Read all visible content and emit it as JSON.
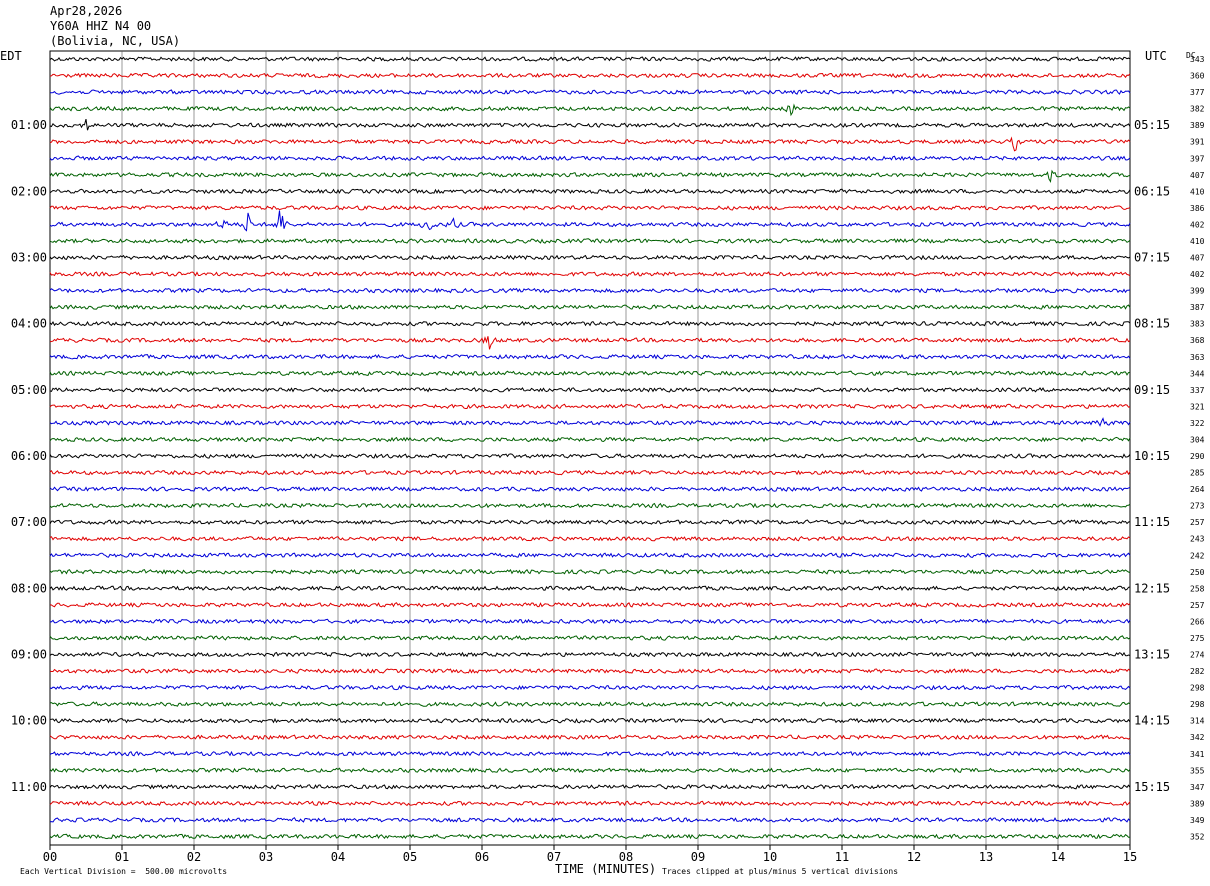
{
  "header": {
    "date": "Apr28,2026",
    "station": "Y60A HHZ N4 00",
    "location": "(Bolivia, NC, USA)"
  },
  "labels": {
    "left_tz": "EDT",
    "right_tz": "UTC",
    "dc": "DC"
  },
  "footer": {
    "scale_note": "Each Vertical Division =  500.00 microvolts",
    "clip_note": "Traces clipped at plus/minus 5 vertical divisions"
  },
  "chart_data": {
    "type": "line",
    "title": "",
    "xlabel": "TIME (MINUTES)",
    "xlim": [
      0,
      15
    ],
    "x_ticks": [
      "00",
      "01",
      "02",
      "03",
      "04",
      "05",
      "06",
      "07",
      "08",
      "09",
      "10",
      "11",
      "12",
      "13",
      "14",
      "15"
    ],
    "grid": "vertical lines each minute",
    "row_count": 48,
    "row_minutes": 15,
    "left_hour_labels": [
      "01:00",
      "02:00",
      "03:00",
      "04:00",
      "05:00",
      "06:00",
      "07:00",
      "08:00",
      "09:00",
      "10:00",
      "11:00"
    ],
    "right_hour_labels": [
      "05:15",
      "06:15",
      "07:15",
      "08:15",
      "09:15",
      "10:15",
      "11:15",
      "12:15",
      "13:15",
      "14:15",
      "15:15"
    ],
    "hour_label_start_row": 4,
    "hour_label_every_rows": 4,
    "trace_colors": [
      "#000000",
      "#e00000",
      "#0000d8",
      "#006000"
    ],
    "dc_offsets": [
      343,
      360,
      377,
      382,
      389,
      391,
      397,
      407,
      410,
      386,
      402,
      410,
      407,
      402,
      399,
      387,
      383,
      368,
      363,
      344,
      337,
      321,
      322,
      304,
      290,
      285,
      264,
      273,
      257,
      243,
      242,
      250,
      258,
      257,
      266,
      275,
      274,
      282,
      298,
      298,
      314,
      342,
      341,
      355,
      347,
      389,
      349,
      352
    ],
    "events": [
      {
        "row": 4,
        "minute": 0.5,
        "amp": 1.0
      },
      {
        "row": 10,
        "minute": 2.4,
        "amp": 1.2
      },
      {
        "row": 10,
        "minute": 2.75,
        "amp": 1.6
      },
      {
        "row": 10,
        "minute": 3.2,
        "amp": 3.2
      },
      {
        "row": 10,
        "minute": 5.25,
        "amp": 1.8
      },
      {
        "row": 10,
        "minute": 5.6,
        "amp": 0.8
      },
      {
        "row": 17,
        "minute": 6.1,
        "amp": 1.3
      },
      {
        "row": 22,
        "minute": 14.6,
        "amp": 1.0
      },
      {
        "row": 5,
        "minute": 13.4,
        "amp": 1.1
      },
      {
        "row": 3,
        "minute": 10.3,
        "amp": 0.9
      },
      {
        "row": 7,
        "minute": 13.9,
        "amp": 0.8
      }
    ]
  }
}
